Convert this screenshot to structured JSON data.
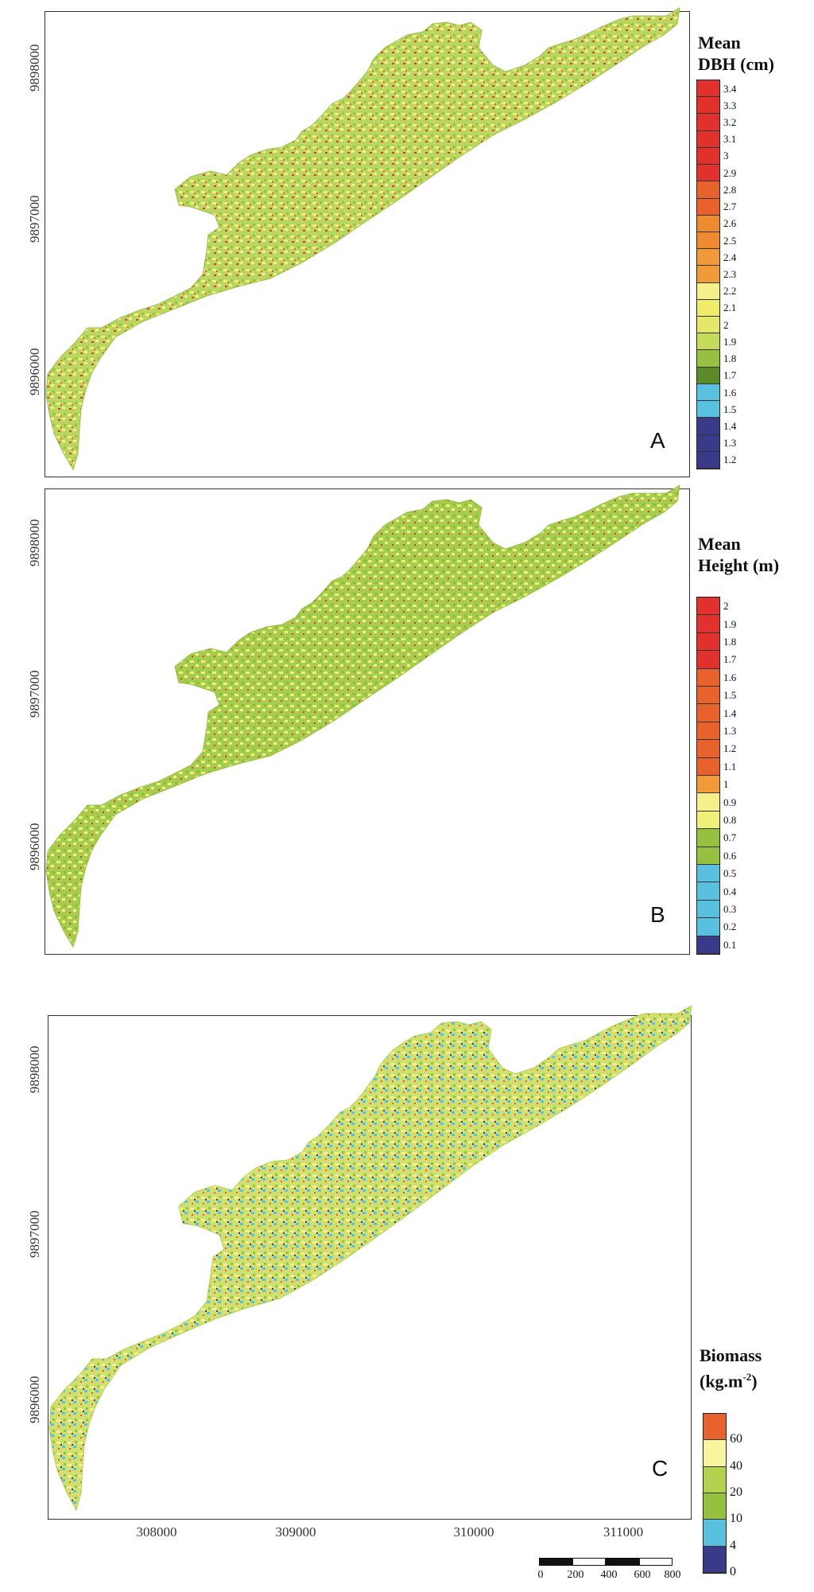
{
  "panels": [
    {
      "letter": "A",
      "legend": {
        "title_line1": "Mean",
        "title_line2": "DBH (cm)",
        "labels": [
          "3.4",
          "3.3",
          "3.2",
          "3.1",
          "3",
          "2.9",
          "2.8",
          "2.7",
          "2.6",
          "2.5",
          "2.4",
          "2.3",
          "2.2",
          "2.1",
          "2",
          "1.9",
          "1.8",
          "1.7",
          "1.6",
          "1.5",
          "1.4",
          "1.3",
          "1.2"
        ],
        "colors": [
          "#e2312c",
          "#e2312c",
          "#e2312c",
          "#e2312c",
          "#e2312c",
          "#e2312c",
          "#e8622e",
          "#e8622e",
          "#ee8a30",
          "#ee8a30",
          "#f29a3a",
          "#f29a3a",
          "#f6f08a",
          "#f0ec6a",
          "#e4e86a",
          "#c4dc5a",
          "#96c040",
          "#5a8a2a",
          "#5ac0e0",
          "#5ac0e0",
          "#3a3a8a",
          "#3a3a8a",
          "#3a3a8a"
        ]
      },
      "y_ticks": [
        "9898000",
        "9897000",
        "9896000"
      ]
    },
    {
      "letter": "B",
      "legend": {
        "title_line1": "Mean",
        "title_line2": "Height (m)",
        "labels": [
          "2",
          "1.9",
          "1.8",
          "1.7",
          "1.6",
          "1.5",
          "1.4",
          "1.3",
          "1.2",
          "1.1",
          "1",
          "0.9",
          "0.8",
          "0.7",
          "0.6",
          "0.5",
          "0.4",
          "0.3",
          "0.2",
          "0.1"
        ],
        "colors": [
          "#e2312c",
          "#e2312c",
          "#e2312c",
          "#e2312c",
          "#e8622e",
          "#e8622e",
          "#e8622e",
          "#e8622e",
          "#e8622e",
          "#e8622e",
          "#f29a3a",
          "#f6f08a",
          "#eef07a",
          "#96c040",
          "#96c040",
          "#5ac0e0",
          "#5ac0e0",
          "#5ac0e0",
          "#5ac0e0",
          "#3a3a8a"
        ]
      },
      "y_ticks": [
        "9898000",
        "9897000",
        "9896000"
      ]
    },
    {
      "letter": "C",
      "legend": {
        "title_line1": "Biomass",
        "title_line2": "(kg.m",
        "title_sup": "-2",
        "title_end": ")",
        "labels": [
          "60",
          "40",
          "20",
          "10",
          "4",
          "0"
        ],
        "colors": [
          "#e8622e",
          "#f8f4a0",
          "#b4d250",
          "#96c040",
          "#5ac0e0",
          "#3a3a8a"
        ]
      },
      "y_ticks": [
        "9898000",
        "9897000",
        "9896000"
      ],
      "x_ticks": [
        "308000",
        "309000",
        "310000",
        "311000"
      ]
    }
  ],
  "scalebar": {
    "labels": [
      "0",
      "200",
      "400",
      "600",
      "800"
    ]
  }
}
